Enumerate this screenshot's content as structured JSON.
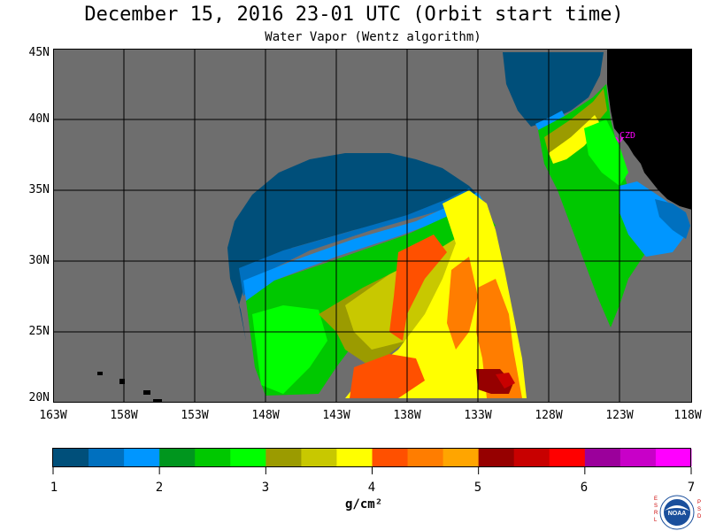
{
  "title": "December 15, 2016  23-01 UTC  (Orbit start time)",
  "subtitle": "Water Vapor (Wentz algorithm)",
  "map": {
    "lat_labels": [
      "45N",
      "40N",
      "35N",
      "30N",
      "25N",
      "20N"
    ],
    "lon_labels": [
      "163W",
      "158W",
      "153W",
      "148W",
      "143W",
      "138W",
      "133W",
      "128W",
      "123W",
      "118W"
    ],
    "station_label": "CZD",
    "colors": {
      "no_data": "#6e6e6e",
      "land": "#000000",
      "grid": "#000000",
      "station": "#ff00ff"
    }
  },
  "colorbar": {
    "tick_labels": [
      "1",
      "2",
      "3",
      "4",
      "5",
      "6",
      "7"
    ],
    "units": "g/cm²",
    "colors": [
      "#004f7a",
      "#0070bf",
      "#0096ff",
      "#00961e",
      "#00c800",
      "#00ff00",
      "#9b9b00",
      "#c8c800",
      "#ffff00",
      "#ff5000",
      "#ff7d00",
      "#ffa500",
      "#960000",
      "#c80000",
      "#ff0000",
      "#9b009b",
      "#c800c8",
      "#ff00ff"
    ]
  },
  "logo": {
    "text": "NOAA",
    "left_letters": "ESRL",
    "right_letters": "PSD"
  }
}
